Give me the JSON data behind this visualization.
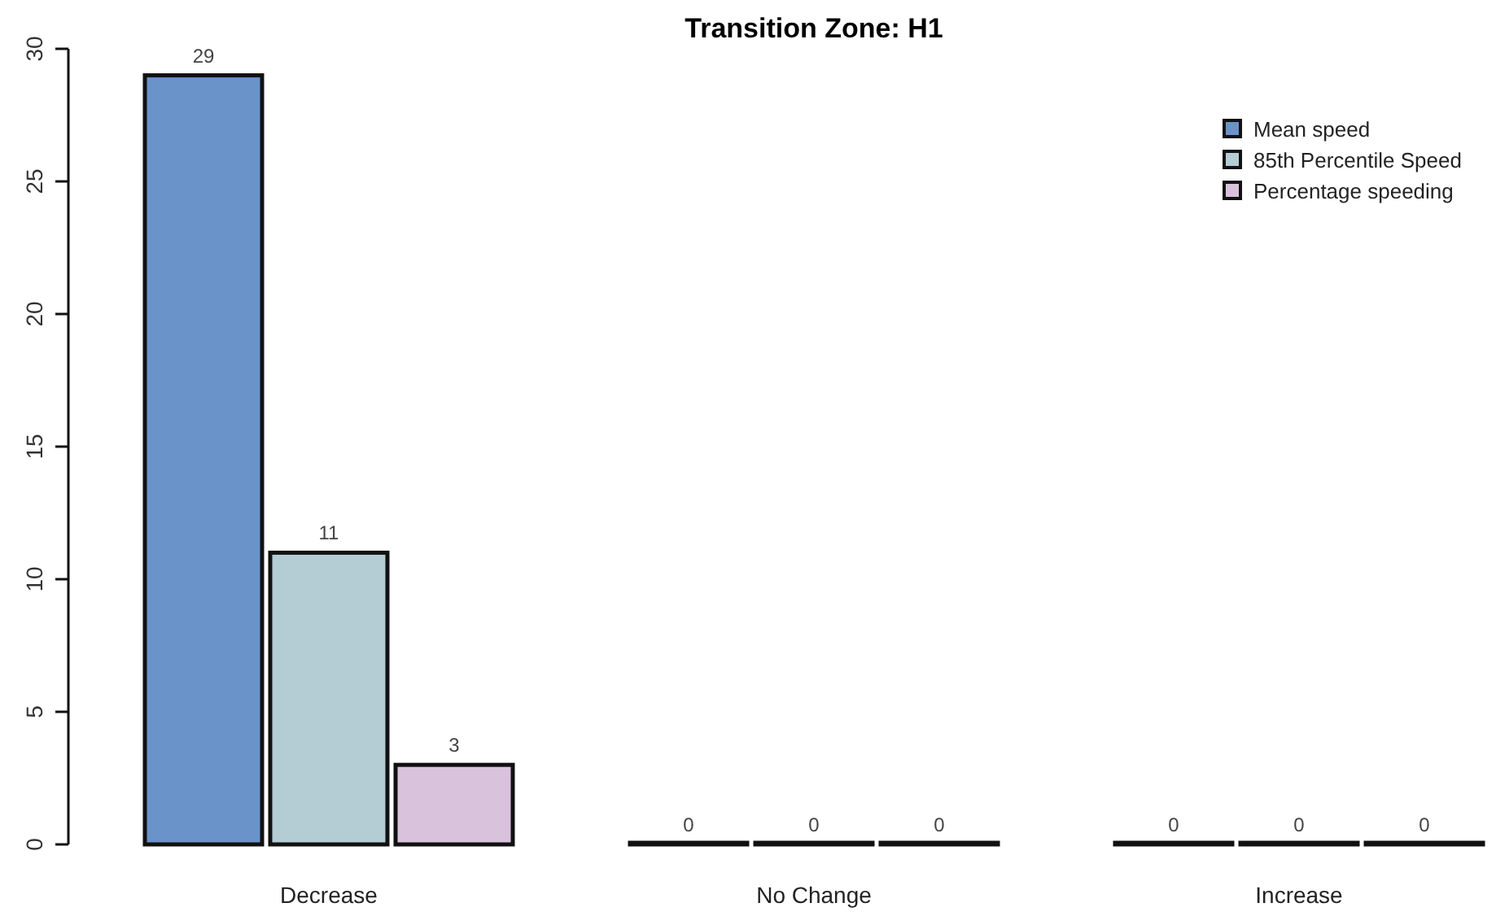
{
  "chart_data": {
    "type": "bar",
    "title": "Transition Zone: H1",
    "categories": [
      "Decrease",
      "No Change",
      "Increase"
    ],
    "series": [
      {
        "name": "Mean speed",
        "color": "#6a93c9",
        "values": [
          29,
          0,
          0
        ]
      },
      {
        "name": "85th Percentile Speed",
        "color": "#b4ccd3",
        "values": [
          11,
          0,
          0
        ]
      },
      {
        "name": "Percentage speeding",
        "color": "#d9c2db",
        "values": [
          3,
          0,
          0
        ]
      }
    ],
    "ylim": [
      0,
      30
    ],
    "yticks": [
      0,
      5,
      10,
      15,
      20,
      25,
      30
    ],
    "data_labels": true,
    "legend": "top right",
    "grid": false
  }
}
